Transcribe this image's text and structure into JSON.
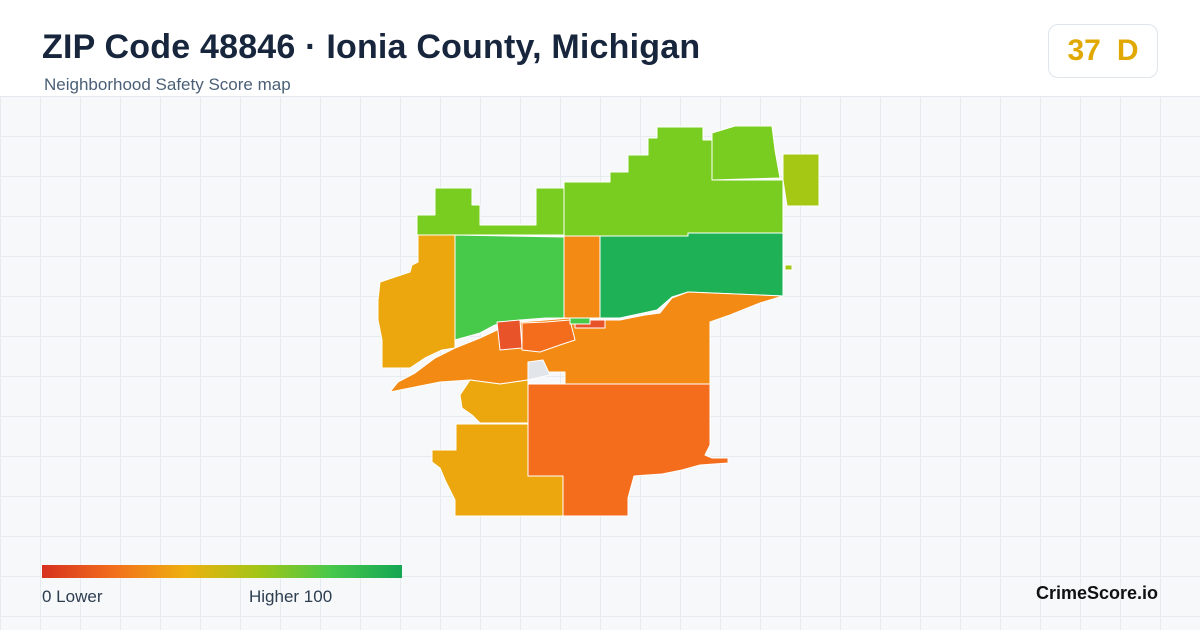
{
  "header": {
    "title": "ZIP Code 48846 · Ionia County, Michigan",
    "subtitle": "Neighborhood Safety Score map"
  },
  "score": {
    "value": "37",
    "grade": "D",
    "color": "#e0a800"
  },
  "legend": {
    "low_label": "0  Lower",
    "high_label": "Higher  100",
    "gradient": [
      "#d7301f",
      "#f26f1c",
      "#eeb00f",
      "#a3c516",
      "#48c84a",
      "#15a654"
    ]
  },
  "brand": "CrimeScore.io",
  "map": {
    "colors": {
      "lime": "#79cd20",
      "yellow_green": "#a5c814",
      "green": "#47c94a",
      "dark_green": "#1fb156",
      "orange": "#f28a14",
      "amber": "#eca70f",
      "dark_orange": "#f46d1c",
      "red_orange": "#e8532a",
      "no_data": "#e2e6ea"
    }
  }
}
